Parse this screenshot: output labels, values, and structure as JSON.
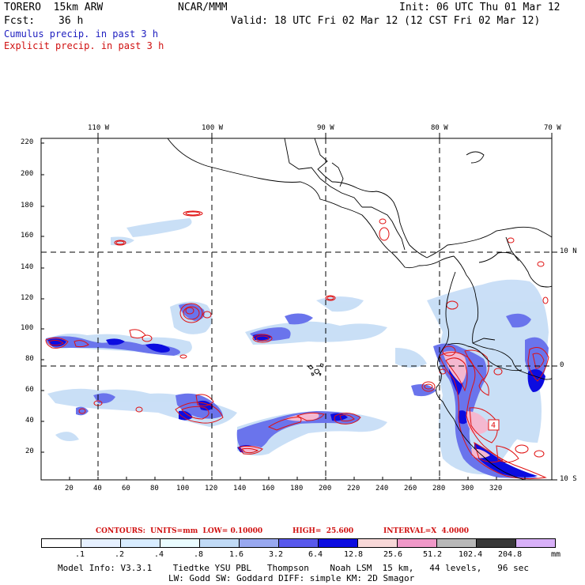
{
  "header": {
    "model": "TORERO  15km ARW",
    "org": "NCAR/MMM",
    "init": "Init: 06 UTC Thu 01 Mar 12",
    "fcst_label": "Fcst:",
    "fcst_value": "36 h",
    "valid": "Valid: 18 UTC Fri 02 Mar 12 (12 CST Fri 02 Mar 12)"
  },
  "legend": {
    "cumulus": "Cumulus precip. in past 3 h",
    "explicit": "Explicit precip. in past 3 h"
  },
  "map": {
    "lon_labels": [
      "110 W",
      "100 W",
      "90 W",
      "80 W",
      "70 W"
    ],
    "lat_labels": [
      "10 N",
      "0",
      "10 S"
    ],
    "y_ticks": [
      "220",
      "200",
      "180",
      "160",
      "140",
      "120",
      "100",
      "80",
      "60",
      "40",
      "20"
    ],
    "x_ticks": [
      "20",
      "40",
      "60",
      "80",
      "100",
      "120",
      "140",
      "160",
      "180",
      "200",
      "220",
      "240",
      "260",
      "280",
      "300",
      "320"
    ],
    "contour_box_label": "4"
  },
  "contours": {
    "units": "CONTOURS:  UNITS=mm  LOW= 0.10000",
    "high": "HIGH=  25.600",
    "interval": "INTERVAL=X  4.0000"
  },
  "colorbar": {
    "colors": [
      "#ffffff",
      "#e6f0ff",
      "#d8ecff",
      "#eafcff",
      "#c0daf6",
      "#98a8f0",
      "#5858ec",
      "#0c0ce0",
      "#f8d8d8",
      "#f098c8",
      "#b8b8b8",
      "#383838",
      "#d8b0f8"
    ],
    "labels": [
      ".1",
      ".2",
      ".4",
      ".8",
      "1.6",
      "3.2",
      "6.4",
      "12.8",
      "25.6",
      "51.2",
      "102.4",
      "204.8"
    ],
    "unit": "mm"
  },
  "footer": {
    "line1": "Model Info: V3.3.1    Tiedtke YSU PBL   Thompson    Noah LSM  15 km,   44 levels,   96 sec",
    "line2": "LW: Godd SW: Goddard DIFF: simple KM: 2D Smagor"
  }
}
